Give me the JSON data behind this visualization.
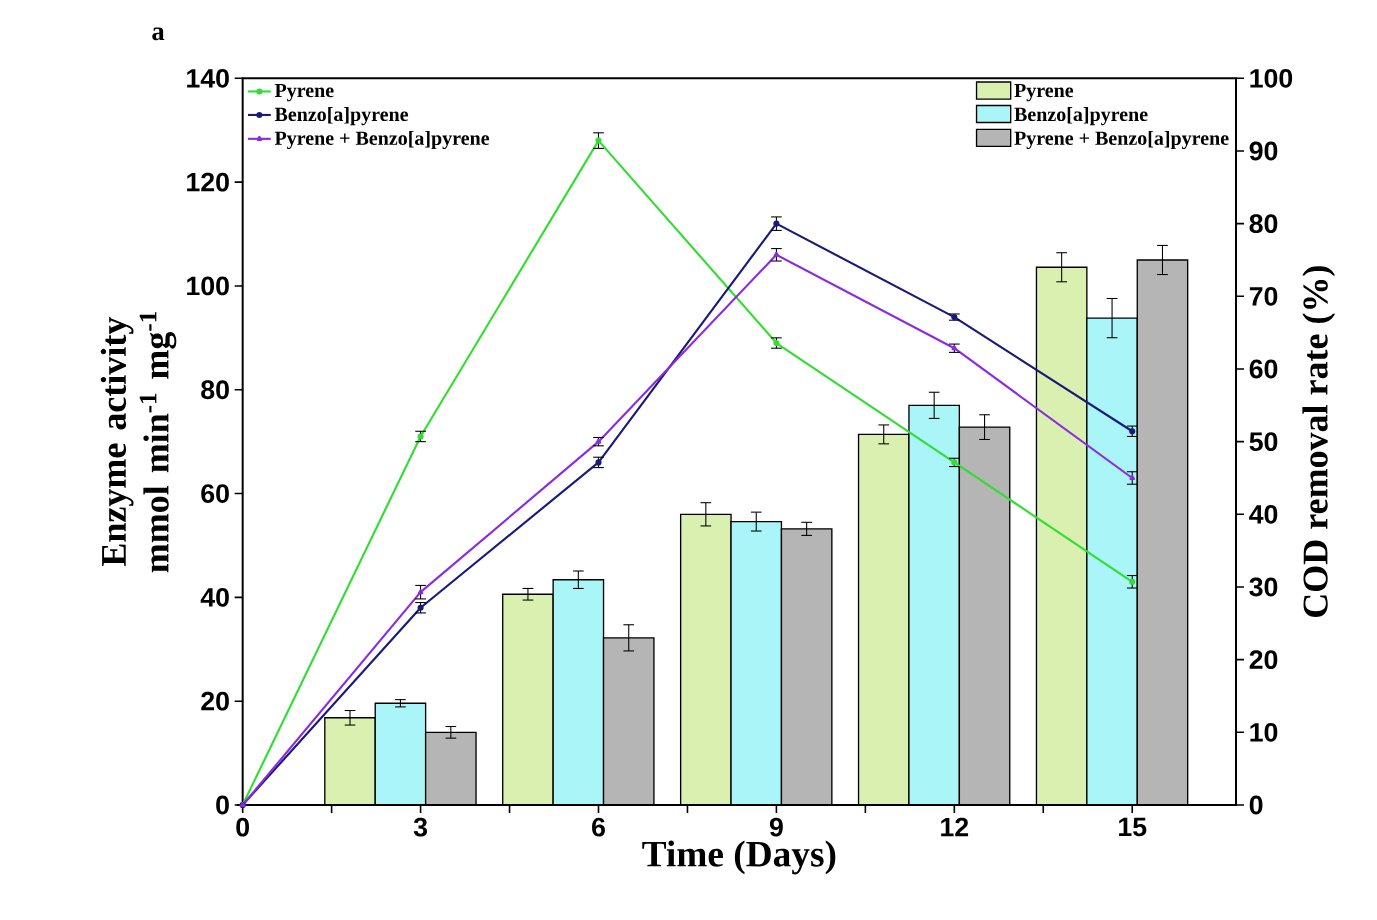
{
  "chart_data": {
    "type": "line",
    "title": "a",
    "xlabel": "Time (Days)",
    "ylabel": "Enzyme activity mmol min$^{-1}$ mg$^{-1}$",
    "y2label": "COD removal rate (%)",
    "x": [
      0,
      3,
      6,
      9,
      12,
      15
    ],
    "xlim": [
      0,
      16.75
    ],
    "xticks": [
      0,
      {
        "value": 1.5,
        "label": null
      },
      3,
      {
        "value": 4.5,
        "label": null
      },
      6,
      {
        "value": 7.5,
        "label": null
      },
      9,
      {
        "value": 10.5,
        "label": null
      },
      12,
      {
        "value": 13.5,
        "label": null
      },
      15
    ],
    "ylim": [
      0,
      140
    ],
    "yticks": [
      0,
      20,
      40,
      60,
      80,
      100,
      120,
      140
    ],
    "y2lim": [
      0,
      100
    ],
    "y2ticks": [
      0,
      10,
      20,
      30,
      40,
      50,
      60,
      70,
      80,
      90,
      100
    ],
    "legend": "top",
    "grid": false,
    "series": [
      {
        "name": "Pyrene",
        "type": "bar",
        "axis": "y2",
        "color": "#d9f0b0",
        "x": [
          3,
          6,
          9,
          12,
          15
        ],
        "values": [
          12,
          29,
          40,
          51,
          74
        ],
        "errors": [
          1,
          0.8,
          1.6,
          1.3,
          2
        ]
      },
      {
        "name": "Benzo[a]pyrene",
        "type": "bar",
        "axis": "y2",
        "color": "#aaf5f8",
        "x": [
          3,
          6,
          9,
          12,
          15
        ],
        "values": [
          14,
          31,
          39,
          55,
          67
        ],
        "errors": [
          0.5,
          1.2,
          1.3,
          1.8,
          2.7
        ]
      },
      {
        "name": "Pyrene + Benzo[a]pyrene",
        "type": "bar",
        "axis": "y2",
        "color": "#b5b5b5",
        "x": [
          3,
          6,
          9,
          12,
          15
        ],
        "values": [
          10,
          23,
          38,
          52,
          75
        ],
        "errors": [
          0.8,
          1.8,
          0.9,
          1.7,
          2
        ]
      },
      {
        "name": "Pyrene",
        "color": "#33dd33",
        "marker": "circle",
        "values": [
          0,
          71,
          128,
          89,
          66,
          43
        ],
        "errors": [
          null,
          1,
          1.5,
          1,
          0.8,
          1.2
        ]
      },
      {
        "name": "Benzo[a]pyrene",
        "color": "#1a1a7a",
        "marker": "circle",
        "values": [
          0,
          38,
          66,
          112,
          94,
          72
        ],
        "errors": [
          null,
          1,
          1,
          1.3,
          0.6,
          1
        ]
      },
      {
        "name": "Pyrene + Benzo[a]pyrene",
        "color": "#8a2be2",
        "marker": "triangle",
        "values": [
          0,
          41,
          70,
          106,
          88,
          63
        ],
        "errors": [
          null,
          1.3,
          0.8,
          1.2,
          0.8,
          1.2
        ]
      }
    ]
  }
}
